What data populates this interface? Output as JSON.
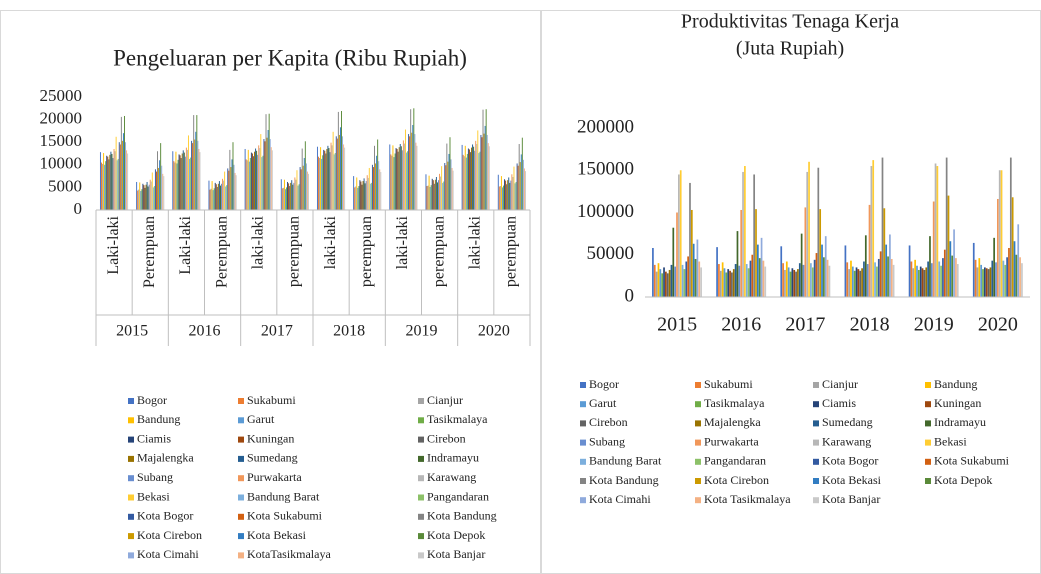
{
  "chart_data": [
    {
      "type": "bar",
      "title": "Pengeluaran per Kapita (Ribu Rupiah)",
      "categories": [
        "Laki-laki",
        "Perempuan",
        "Laki-laki",
        "Perempuan",
        "laki-laki",
        "perempuan",
        "laki-laki",
        "perempuan",
        "laki-laki",
        "perempuan",
        "laki-laki",
        "perempuan"
      ],
      "category_groups": [
        "2015",
        "2016",
        "2017",
        "2018",
        "2019",
        "2020"
      ],
      "ylim": [
        0,
        25000
      ],
      "yticks": [
        0,
        5000,
        10000,
        15000,
        20000,
        25000
      ],
      "grid": false,
      "series": [
        {
          "name": "Bogor",
          "color": "#4472C4",
          "values": [
            12800,
            6200,
            13000,
            6500,
            13500,
            6800,
            14000,
            7500,
            14500,
            7900,
            14400,
            7800
          ]
        },
        {
          "name": "Sukabumi",
          "color": "#ED7D31",
          "values": [
            10500,
            4300,
            10800,
            4500,
            11200,
            4800,
            11800,
            5000,
            12300,
            5300,
            12200,
            5200
          ]
        },
        {
          "name": "Cianjur",
          "color": "#A5A5A5",
          "values": [
            10200,
            4500,
            10500,
            4700,
            11000,
            4900,
            11500,
            5200,
            12000,
            5400,
            11900,
            5300
          ]
        },
        {
          "name": "Bandung",
          "color": "#FFC000",
          "values": [
            12600,
            6100,
            12900,
            6400,
            13300,
            6700,
            13900,
            7200,
            14300,
            7600,
            14200,
            7500
          ]
        },
        {
          "name": "Garut",
          "color": "#5B9BD5",
          "values": [
            10000,
            4200,
            10300,
            4400,
            10700,
            4600,
            11300,
            4900,
            11700,
            5100,
            11600,
            5000
          ]
        },
        {
          "name": "Tasikmalaya",
          "color": "#70AD47",
          "values": [
            10800,
            4600,
            11100,
            4800,
            11500,
            5000,
            12100,
            5300,
            12500,
            5500,
            12400,
            5400
          ]
        },
        {
          "name": "Ciamis",
          "color": "#264478",
          "values": [
            12000,
            5800,
            12300,
            6000,
            12700,
            6200,
            13300,
            6600,
            13700,
            6900,
            13600,
            6800
          ]
        },
        {
          "name": "Kuningan",
          "color": "#9E480E",
          "values": [
            11800,
            5500,
            12100,
            5700,
            12500,
            5900,
            13100,
            6300,
            13500,
            6600,
            13400,
            6500
          ]
        },
        {
          "name": "Cirebon",
          "color": "#636363",
          "values": [
            11200,
            4900,
            11500,
            5100,
            11900,
            5300,
            12500,
            5600,
            12900,
            5800,
            12800,
            5700
          ]
        },
        {
          "name": "Majalengka",
          "color": "#997300",
          "values": [
            12200,
            5600,
            12500,
            5800,
            12900,
            6000,
            13500,
            6400,
            13900,
            6700,
            13800,
            6600
          ]
        },
        {
          "name": "Sumedang",
          "color": "#255E91",
          "values": [
            12900,
            6200,
            13200,
            6400,
            13600,
            6600,
            14200,
            7000,
            14600,
            7300,
            14500,
            7200
          ]
        },
        {
          "name": "Indramayu",
          "color": "#43682B",
          "values": [
            12400,
            5200,
            12700,
            5400,
            13100,
            5600,
            13700,
            5900,
            14100,
            6100,
            14000,
            6000
          ]
        },
        {
          "name": "Subang",
          "color": "#698ED0",
          "values": [
            11500,
            5600,
            11800,
            5800,
            12200,
            6000,
            12800,
            6400,
            13200,
            6600,
            13100,
            6500
          ]
        },
        {
          "name": "Purwakarta",
          "color": "#F1975A",
          "values": [
            13500,
            6700,
            13800,
            6900,
            14300,
            7200,
            14900,
            7700,
            15400,
            8000,
            15300,
            7900
          ]
        },
        {
          "name": "Karawang",
          "color": "#B7B7B7",
          "values": [
            13000,
            6300,
            13300,
            6500,
            13700,
            6700,
            14300,
            7100,
            14700,
            7400,
            14600,
            7300
          ]
        },
        {
          "name": "Bekasi",
          "color": "#FFCD33",
          "values": [
            16200,
            8300,
            16500,
            8500,
            16800,
            8800,
            17300,
            9300,
            17800,
            9700,
            17600,
            9600
          ]
        },
        {
          "name": "Bandung Barat",
          "color": "#7CAFDD",
          "values": [
            11000,
            5000,
            11300,
            5200,
            11700,
            5400,
            12300,
            5800,
            12700,
            6000,
            12600,
            5900
          ]
        },
        {
          "name": "Pangandaran",
          "color": "#8CC168",
          "values": [
            11300,
            5300,
            11600,
            5500,
            12000,
            5700,
            12600,
            6000,
            13000,
            6300,
            12900,
            6200
          ]
        },
        {
          "name": "Kota Bogor",
          "color": "#335AA1",
          "values": [
            15000,
            9000,
            15300,
            9200,
            15700,
            9500,
            16300,
            10000,
            16800,
            10400,
            16600,
            10300
          ]
        },
        {
          "name": "Kota Sukabumi",
          "color": "#D26012",
          "values": [
            14500,
            8500,
            14800,
            8700,
            15200,
            9000,
            15800,
            9500,
            16300,
            9900,
            16100,
            9800
          ]
        },
        {
          "name": "Kota Bandung",
          "color": "#848484",
          "values": [
            20600,
            13000,
            21000,
            13300,
            21200,
            13600,
            21700,
            14200,
            22300,
            14700,
            22200,
            14600
          ]
        },
        {
          "name": "Kota Cirebon",
          "color": "#CC9A00",
          "values": [
            15300,
            9300,
            15600,
            9500,
            16000,
            9800,
            16600,
            10300,
            17100,
            10700,
            16900,
            10600
          ]
        },
        {
          "name": "Kota Bekasi",
          "color": "#327DC2",
          "values": [
            17000,
            11000,
            17300,
            11200,
            17700,
            11500,
            18300,
            12000,
            18800,
            12400,
            18600,
            12300
          ]
        },
        {
          "name": "Kota Depok",
          "color": "#5A8A39",
          "values": [
            20800,
            14800,
            21000,
            15000,
            21300,
            15200,
            21900,
            15600,
            22500,
            16100,
            22300,
            16000
          ]
        },
        {
          "name": "Kota Cimahi",
          "color": "#8FAADC",
          "values": [
            15000,
            9800,
            15300,
            10000,
            15700,
            10300,
            16300,
            10800,
            16800,
            11200,
            16600,
            11100
          ]
        },
        {
          "name": "KotaTasikmalaya",
          "color": "#F4B183",
          "values": [
            13200,
            8000,
            13500,
            8200,
            13900,
            8500,
            14500,
            9000,
            14900,
            9300,
            14800,
            9200
          ]
        },
        {
          "name": "Kota Banjar",
          "color": "#C9C9C9",
          "values": [
            12500,
            7500,
            12800,
            7700,
            13200,
            8000,
            13800,
            8400,
            14200,
            8700,
            14100,
            8600
          ]
        }
      ]
    },
    {
      "type": "bar",
      "title": "Produktivitas Tenaga Kerja",
      "subtitle": "(Juta Rupiah)",
      "categories": [
        "2015",
        "2016",
        "2017",
        "2018",
        "2019",
        "2020"
      ],
      "ylim": [
        0,
        200000
      ],
      "yticks": [
        0,
        50000,
        100000,
        150000,
        200000
      ],
      "grid": false,
      "series": [
        {
          "name": "Bogor",
          "color": "#4472C4",
          "values": [
            58000,
            59000,
            60000,
            61000,
            61000,
            64000
          ]
        },
        {
          "name": "Sukabumi",
          "color": "#ED7D31",
          "values": [
            38000,
            39000,
            40000,
            41000,
            42000,
            44000
          ]
        },
        {
          "name": "Cianjur",
          "color": "#A5A5A5",
          "values": [
            30000,
            31000,
            32000,
            33000,
            34000,
            35000
          ]
        },
        {
          "name": "Bandung",
          "color": "#FFC000",
          "values": [
            40000,
            41000,
            42000,
            43000,
            44000,
            46000
          ]
        },
        {
          "name": "Garut",
          "color": "#5B9BD5",
          "values": [
            33000,
            34000,
            35000,
            36000,
            37000,
            38000
          ]
        },
        {
          "name": "Tasikmalaya",
          "color": "#70AD47",
          "values": [
            28000,
            29000,
            30000,
            31000,
            32000,
            33000
          ]
        },
        {
          "name": "Ciamis",
          "color": "#264478",
          "values": [
            35000,
            33000,
            34000,
            35000,
            36000,
            35000
          ]
        },
        {
          "name": "Kuningan",
          "color": "#9E480E",
          "values": [
            30000,
            31000,
            32000,
            33000,
            34000,
            34000
          ]
        },
        {
          "name": "Cirebon",
          "color": "#636363",
          "values": [
            28000,
            29000,
            30000,
            31000,
            32000,
            33000
          ]
        },
        {
          "name": "Majalengka",
          "color": "#997300",
          "values": [
            32000,
            33000,
            33000,
            34000,
            35000,
            35000
          ]
        },
        {
          "name": "Sumedang",
          "color": "#255E91",
          "values": [
            38000,
            39000,
            40000,
            42000,
            42000,
            43000
          ]
        },
        {
          "name": "Indramayu",
          "color": "#43682B",
          "values": [
            82000,
            78000,
            75000,
            73000,
            72000,
            70000
          ]
        },
        {
          "name": "Subang",
          "color": "#698ED0",
          "values": [
            36000,
            37000,
            38000,
            39000,
            40000,
            41000
          ]
        },
        {
          "name": "Purwakarta",
          "color": "#F1975A",
          "values": [
            100000,
            103000,
            106000,
            109000,
            113000,
            116000
          ]
        },
        {
          "name": "Karawang",
          "color": "#B7B7B7",
          "values": [
            145000,
            148000,
            148000,
            155000,
            158000,
            150000
          ]
        },
        {
          "name": "Bekasi",
          "color": "#FFCD33",
          "values": [
            150000,
            155000,
            160000,
            162000,
            155000,
            150000
          ]
        },
        {
          "name": "Bandung Barat",
          "color": "#7CAFDD",
          "values": [
            38000,
            39000,
            40000,
            41000,
            42000,
            43000
          ]
        },
        {
          "name": "Pangandaran",
          "color": "#8CC168",
          "values": [
            33000,
            34000,
            35000,
            36000,
            37000,
            38000
          ]
        },
        {
          "name": "Kota Bogor",
          "color": "#335AA1",
          "values": [
            42000,
            43000,
            44000,
            45000,
            46000,
            47000
          ]
        },
        {
          "name": "Kota Sukabumi",
          "color": "#D26012",
          "values": [
            48000,
            50000,
            52000,
            54000,
            56000,
            58000
          ]
        },
        {
          "name": "Kota Bandung",
          "color": "#848484",
          "values": [
            135000,
            145000,
            153000,
            165000,
            165000,
            165000
          ]
        },
        {
          "name": "Kota Cirebon",
          "color": "#CC9A00",
          "values": [
            103000,
            104000,
            104000,
            105000,
            120000,
            118000
          ]
        },
        {
          "name": "Kota Bekasi",
          "color": "#327DC2",
          "values": [
            63000,
            62000,
            62000,
            62000,
            66000,
            66000
          ]
        },
        {
          "name": "Kota Depok",
          "color": "#5A8A39",
          "values": [
            45000,
            46000,
            47000,
            48000,
            49000,
            50000
          ]
        },
        {
          "name": "Kota Cimahi",
          "color": "#8FAADC",
          "values": [
            68000,
            70000,
            72000,
            74000,
            80000,
            86000
          ]
        },
        {
          "name": "Kota Tasikmalaya",
          "color": "#F4B183",
          "values": [
            42000,
            43000,
            44000,
            45000,
            46000,
            47000
          ]
        },
        {
          "name": "Kota Banjar",
          "color": "#C9C9C9",
          "values": [
            35000,
            36000,
            37000,
            38000,
            39000,
            40000
          ]
        }
      ]
    }
  ]
}
